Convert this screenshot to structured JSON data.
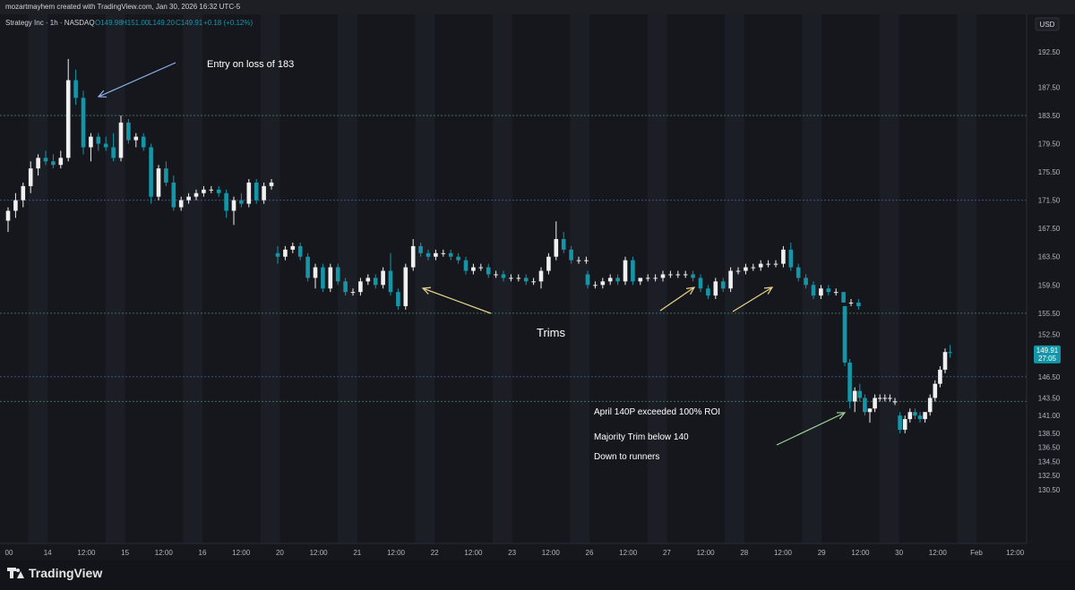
{
  "header": {
    "created_text": "mozartmayhem created with TradingView.com, Jan 30, 2026 16:32 UTC-5"
  },
  "footer": {
    "brand": "TradingView"
  },
  "colors": {
    "background": "#16171d",
    "band": "#1c1e26",
    "up_candle": "#f0f0f0",
    "down_candle": "#1596a8",
    "grid_line": "#2f3a6e",
    "price_label_bg": "#1596a8",
    "text": "#d1d4dc",
    "arrow_blue": "#8fb4f0",
    "arrow_yellow": "#e8d58a",
    "arrow_green": "#9fd49a"
  },
  "chart_data": {
    "type": "candlestick",
    "legend": {
      "symbol": "Strategy Inc · 1h · NASDAQ",
      "open": "O149.98",
      "high": "H151.00",
      "low": "L149.20",
      "close": "C149.91",
      "change": "+0.18 (+0.12%)"
    },
    "currency": "USD",
    "ylim": [
      127.5,
      195.5
    ],
    "y_ticks": [
      "192.50",
      "187.50",
      "183.50",
      "179.50",
      "175.50",
      "171.50",
      "167.50",
      "163.50",
      "159.50",
      "155.50",
      "152.50",
      "146.50",
      "143.50",
      "141.00",
      "138.50",
      "136.50",
      "134.50",
      "132.50",
      "130.50"
    ],
    "x_ticks": [
      {
        "label": "00",
        "x": 0
      },
      {
        "label": "14",
        "x": 1
      },
      {
        "label": "12:00",
        "x": 2
      },
      {
        "label": "15",
        "x": 3
      },
      {
        "label": "12:00",
        "x": 4
      },
      {
        "label": "16",
        "x": 5
      },
      {
        "label": "12:00",
        "x": 6
      },
      {
        "label": "20",
        "x": 7
      },
      {
        "label": "12:00",
        "x": 8
      },
      {
        "label": "21",
        "x": 9
      },
      {
        "label": "12:00",
        "x": 10
      },
      {
        "label": "22",
        "x": 11
      },
      {
        "label": "12:00",
        "x": 12
      },
      {
        "label": "23",
        "x": 13
      },
      {
        "label": "12:00",
        "x": 14
      },
      {
        "label": "26",
        "x": 15
      },
      {
        "label": "12:00",
        "x": 16
      },
      {
        "label": "27",
        "x": 17
      },
      {
        "label": "12:00",
        "x": 18
      },
      {
        "label": "28",
        "x": 19
      },
      {
        "label": "12:00",
        "x": 20
      },
      {
        "label": "29",
        "x": 21
      },
      {
        "label": "12:00",
        "x": 22
      },
      {
        "label": "30",
        "x": 23
      },
      {
        "label": "12:00",
        "x": 24
      },
      {
        "label": "Feb",
        "x": 25
      },
      {
        "label": "12:00",
        "x": 26
      }
    ],
    "horizontal_lines": [
      {
        "price": 183.5,
        "color": "green"
      },
      {
        "price": 171.5,
        "color": "blue"
      },
      {
        "price": 155.5,
        "color": "green"
      },
      {
        "price": 146.5,
        "color": "blue"
      },
      {
        "price": 143.0,
        "color": "green"
      }
    ],
    "current_price": {
      "value": "149.91",
      "countdown": "27:05",
      "price": 149.91
    },
    "annotations": [
      {
        "text": "Entry on loss of 183"
      },
      {
        "text": "Trims"
      },
      {
        "text": "April 140P exceeded 100% ROI"
      },
      {
        "text": "Majority Trim below 140"
      },
      {
        "text": "Down to runners"
      }
    ],
    "candles": [
      [
        168.6,
        170.5,
        167.0,
        170.0
      ],
      [
        170.0,
        172.5,
        169.0,
        171.5
      ],
      [
        171.5,
        174.0,
        170.5,
        173.5
      ],
      [
        173.5,
        177.0,
        172.5,
        176.0
      ],
      [
        176.0,
        178.0,
        175.0,
        177.5
      ],
      [
        177.5,
        178.5,
        176.5,
        177.0
      ],
      [
        177.0,
        178.0,
        176.0,
        176.5
      ],
      [
        176.5,
        178.5,
        176.0,
        177.5
      ],
      [
        177.5,
        191.5,
        177.0,
        188.5
      ],
      [
        188.5,
        190.0,
        185.0,
        186.0
      ],
      [
        186.0,
        187.0,
        178.0,
        179.0
      ],
      [
        179.0,
        181.0,
        177.0,
        180.5
      ],
      [
        180.5,
        181.0,
        178.5,
        179.5
      ],
      [
        179.5,
        180.5,
        178.5,
        179.0
      ],
      [
        179.0,
        181.0,
        177.0,
        177.5
      ],
      [
        177.5,
        183.5,
        177.0,
        182.5
      ],
      [
        182.5,
        183.0,
        179.5,
        180.0
      ],
      [
        180.0,
        181.0,
        179.0,
        180.5
      ],
      [
        180.5,
        181.0,
        178.5,
        179.0
      ],
      [
        179.0,
        179.5,
        171.0,
        172.0
      ],
      [
        172.0,
        176.5,
        171.5,
        176.0
      ],
      [
        176.0,
        177.0,
        173.5,
        174.0
      ],
      [
        174.0,
        175.0,
        170.0,
        170.5
      ],
      [
        170.5,
        172.0,
        170.0,
        171.5
      ],
      [
        171.5,
        172.5,
        171.0,
        172.0
      ],
      [
        172.0,
        173.0,
        171.5,
        172.5
      ],
      [
        172.5,
        173.5,
        172.0,
        173.0
      ],
      [
        173.0,
        173.5,
        172.5,
        173.0
      ],
      [
        173.0,
        173.5,
        172.0,
        172.5
      ],
      [
        172.5,
        173.0,
        169.0,
        170.0
      ],
      [
        170.0,
        172.0,
        168.0,
        171.5
      ],
      [
        171.5,
        172.5,
        170.5,
        171.0
      ],
      [
        171.0,
        174.5,
        170.5,
        174.0
      ],
      [
        174.0,
        174.5,
        171.0,
        171.5
      ],
      [
        171.5,
        174.0,
        171.0,
        173.5
      ],
      [
        173.5,
        174.5,
        173.0,
        174.0
      ],
      [
        164.0,
        165.0,
        162.5,
        163.5
      ],
      [
        163.5,
        165.0,
        163.0,
        164.5
      ],
      [
        164.5,
        165.5,
        164.0,
        165.0
      ],
      [
        165.0,
        165.5,
        163.0,
        163.5
      ],
      [
        163.5,
        164.0,
        160.0,
        160.5
      ],
      [
        160.5,
        162.5,
        159.0,
        162.0
      ],
      [
        162.0,
        162.5,
        158.5,
        159.0
      ],
      [
        159.0,
        162.5,
        158.5,
        162.0
      ],
      [
        162.0,
        162.5,
        159.5,
        160.0
      ],
      [
        160.0,
        160.5,
        158.0,
        158.5
      ],
      [
        158.5,
        159.0,
        158.0,
        158.5
      ],
      [
        158.5,
        160.5,
        158.0,
        160.0
      ],
      [
        160.0,
        161.0,
        159.5,
        160.5
      ],
      [
        160.5,
        161.0,
        159.0,
        159.5
      ],
      [
        159.5,
        162.0,
        159.0,
        161.5
      ],
      [
        161.5,
        164.0,
        158.0,
        158.5
      ],
      [
        158.5,
        159.0,
        156.0,
        156.5
      ],
      [
        156.5,
        162.5,
        156.0,
        162.0
      ],
      [
        162.0,
        166.0,
        161.5,
        165.0
      ],
      [
        165.0,
        165.5,
        163.5,
        164.0
      ],
      [
        164.0,
        164.5,
        163.0,
        163.5
      ],
      [
        163.5,
        164.5,
        163.0,
        164.0
      ],
      [
        164.0,
        164.5,
        163.5,
        164.0
      ],
      [
        164.0,
        164.5,
        163.0,
        163.5
      ],
      [
        163.5,
        164.0,
        162.5,
        163.0
      ],
      [
        163.0,
        163.5,
        161.0,
        161.5
      ],
      [
        161.5,
        162.5,
        161.0,
        162.0
      ],
      [
        162.0,
        162.5,
        161.5,
        162.0
      ],
      [
        162.0,
        162.5,
        160.5,
        161.0
      ],
      [
        161.0,
        161.5,
        160.5,
        161.0
      ],
      [
        161.0,
        161.5,
        160.0,
        160.5
      ],
      [
        160.5,
        161.0,
        160.0,
        160.5
      ],
      [
        160.5,
        161.0,
        160.0,
        160.5
      ],
      [
        160.5,
        161.0,
        159.5,
        160.0
      ],
      [
        160.0,
        160.5,
        159.5,
        160.0
      ],
      [
        160.0,
        162.0,
        159.0,
        161.5
      ],
      [
        161.5,
        164.0,
        161.0,
        163.5
      ],
      [
        163.5,
        168.5,
        163.0,
        166.0
      ],
      [
        166.0,
        167.0,
        164.0,
        164.5
      ],
      [
        164.5,
        165.0,
        162.5,
        163.0
      ],
      [
        163.0,
        163.5,
        162.5,
        163.0
      ],
      [
        163.0,
        163.5,
        162.5,
        163.0
      ],
      [
        161.0,
        161.5,
        159.0,
        159.5
      ],
      [
        159.5,
        160.0,
        159.0,
        159.5
      ],
      [
        159.5,
        160.5,
        159.0,
        160.0
      ],
      [
        160.0,
        161.0,
        159.5,
        160.5
      ],
      [
        160.5,
        161.0,
        159.5,
        160.0
      ],
      [
        160.0,
        163.5,
        159.5,
        163.0
      ],
      [
        163.0,
        163.5,
        159.5,
        160.0
      ],
      [
        160.0,
        160.5,
        159.5,
        160.5
      ],
      [
        160.5,
        161.0,
        160.0,
        160.5
      ],
      [
        160.5,
        161.0,
        160.0,
        160.5
      ],
      [
        160.5,
        161.5,
        160.0,
        161.0
      ],
      [
        161.0,
        161.5,
        160.5,
        161.0
      ],
      [
        161.0,
        161.5,
        160.5,
        161.0
      ],
      [
        161.0,
        161.5,
        160.5,
        161.0
      ],
      [
        161.0,
        161.5,
        160.0,
        160.5
      ],
      [
        160.5,
        161.0,
        158.5,
        159.0
      ],
      [
        159.0,
        159.5,
        157.5,
        158.0
      ],
      [
        158.0,
        160.5,
        157.5,
        160.0
      ],
      [
        160.0,
        160.5,
        158.5,
        159.0
      ],
      [
        159.0,
        162.0,
        158.5,
        161.5
      ],
      [
        161.5,
        162.0,
        161.0,
        161.5
      ],
      [
        161.5,
        162.5,
        161.0,
        162.0
      ],
      [
        162.0,
        162.5,
        161.5,
        162.0
      ],
      [
        162.0,
        163.0,
        161.5,
        162.5
      ],
      [
        162.5,
        163.0,
        162.0,
        162.5
      ],
      [
        162.5,
        163.0,
        162.0,
        162.5
      ],
      [
        162.5,
        165.0,
        162.0,
        164.5
      ],
      [
        164.5,
        165.5,
        161.5,
        162.0
      ],
      [
        162.0,
        162.5,
        160.0,
        160.5
      ],
      [
        160.5,
        161.0,
        159.0,
        159.5
      ],
      [
        159.5,
        160.0,
        157.5,
        158.0
      ],
      [
        158.0,
        159.5,
        157.5,
        159.0
      ],
      [
        159.0,
        159.5,
        158.0,
        158.5
      ],
      [
        158.5,
        159.0,
        158.0,
        158.5
      ],
      [
        158.5,
        158.5,
        157.0,
        157.0
      ],
      [
        157.0,
        157.5,
        156.5,
        157.0
      ],
      [
        157.0,
        157.5,
        156.0,
        156.5
      ],
      [
        156.5,
        156.5,
        148.0,
        148.5
      ],
      [
        148.5,
        149.0,
        142.0,
        143.0
      ],
      [
        143.0,
        145.0,
        141.5,
        144.5
      ],
      [
        144.5,
        145.5,
        143.0,
        143.5
      ],
      [
        143.5,
        144.0,
        141.0,
        141.5
      ],
      [
        141.5,
        142.0,
        140.0,
        142.0
      ],
      [
        142.0,
        144.0,
        141.5,
        143.5
      ],
      [
        143.5,
        144.0,
        143.0,
        143.5
      ],
      [
        143.5,
        144.0,
        143.0,
        143.5
      ],
      [
        143.5,
        144.0,
        143.0,
        143.5
      ],
      [
        143.0,
        143.5,
        142.5,
        143.0
      ],
      [
        141.0,
        141.5,
        138.5,
        139.0
      ],
      [
        139.0,
        141.0,
        138.5,
        140.5
      ],
      [
        140.5,
        142.0,
        140.0,
        141.5
      ],
      [
        141.5,
        142.0,
        140.5,
        141.0
      ],
      [
        141.0,
        141.5,
        140.0,
        140.5
      ],
      [
        140.5,
        141.5,
        140.0,
        141.5
      ],
      [
        141.5,
        144.0,
        141.0,
        143.5
      ],
      [
        143.5,
        146.0,
        143.0,
        145.5
      ],
      [
        145.5,
        148.0,
        145.0,
        147.5
      ],
      [
        147.5,
        150.5,
        147.0,
        150.0
      ],
      [
        150.0,
        151.0,
        149.2,
        149.91
      ]
    ]
  }
}
